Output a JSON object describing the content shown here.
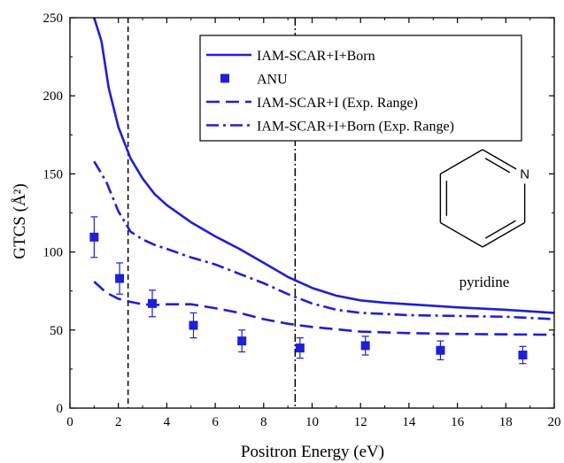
{
  "chart_data": {
    "type": "line",
    "xlabel": "Positron Energy (eV)",
    "ylabel": "GTCS (Å²)",
    "xlim": [
      0,
      20
    ],
    "ylim": [
      0,
      250
    ],
    "xticks": [
      0,
      2,
      4,
      6,
      8,
      10,
      12,
      14,
      16,
      18,
      20
    ],
    "yticks": [
      0,
      50,
      100,
      150,
      200,
      250
    ],
    "legend_position": "top-right",
    "series_color": "#1f1fd6",
    "series": [
      {
        "name": "IAM-SCAR+I+Born",
        "style": "solid",
        "x": [
          1.0,
          1.3,
          1.6,
          2.0,
          2.5,
          3.0,
          3.5,
          4.0,
          5.0,
          6.0,
          7.0,
          8.0,
          9.0,
          10.0,
          11.0,
          12.0,
          13.0,
          14.0,
          16.0,
          18.0,
          20.0
        ],
        "y": [
          250,
          235,
          205,
          180,
          160,
          147,
          137,
          130,
          119,
          110,
          102,
          93,
          84,
          77,
          72,
          69,
          67.5,
          66.5,
          64.5,
          63,
          61
        ]
      },
      {
        "name": "ANU",
        "style": "markers",
        "x": [
          1.0,
          2.05,
          3.4,
          5.1,
          7.1,
          9.5,
          12.2,
          15.3,
          18.7
        ],
        "y": [
          109.5,
          83,
          67,
          53,
          43,
          38.5,
          40,
          37,
          34
        ],
        "yerr": [
          13,
          10,
          8.5,
          8,
          7,
          6.5,
          6,
          6,
          5.5
        ]
      },
      {
        "name": "IAM-SCAR+I (Exp. Range)",
        "style": "dashed",
        "x": [
          1.0,
          1.5,
          2.0,
          2.5,
          3.0,
          3.5,
          4.0,
          5.0,
          6.0,
          7.0,
          8.0,
          9.0,
          10.0,
          12.0,
          14.0,
          16.0,
          18.0,
          20.0
        ],
        "y": [
          81,
          74,
          70,
          68,
          66.5,
          66,
          66.5,
          66.5,
          64,
          61,
          57,
          54,
          52,
          49,
          48,
          47.5,
          47.2,
          47
        ]
      },
      {
        "name": "IAM-SCAR+I+Born (Exp. Range)",
        "style": "dashdot",
        "x": [
          1.0,
          1.5,
          2.0,
          2.5,
          3.0,
          3.5,
          4.0,
          5.0,
          6.0,
          7.0,
          8.0,
          9.0,
          10.0,
          11.0,
          12.0,
          14.0,
          16.0,
          18.0,
          20.0
        ],
        "y": [
          158,
          145,
          126,
          113,
          108,
          104.5,
          102,
          96.5,
          92,
          86,
          80,
          73,
          67,
          63,
          61,
          59.5,
          59,
          58.5,
          57
        ]
      }
    ],
    "reference_lines": [
      {
        "x": 2.4,
        "style": "dashed"
      },
      {
        "x": 9.3,
        "style": "dashdot"
      }
    ],
    "annotations": [
      {
        "text": "pyridine"
      },
      {
        "text": "N"
      }
    ]
  }
}
